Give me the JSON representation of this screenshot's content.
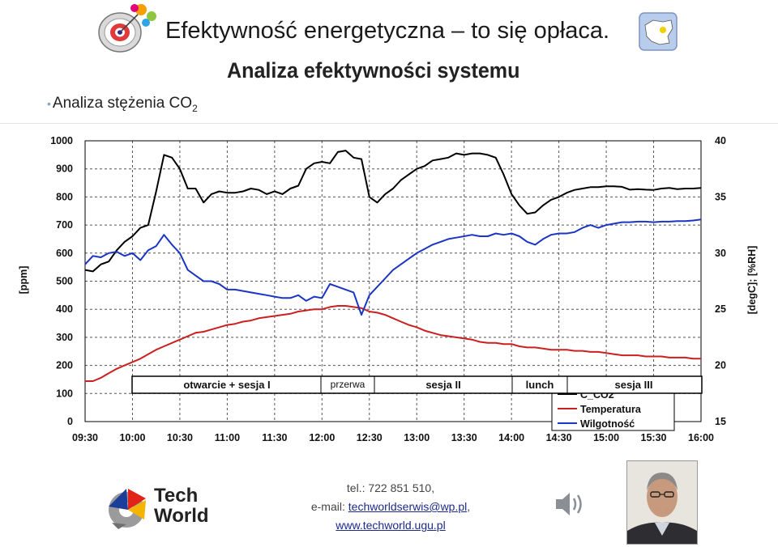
{
  "header": {
    "title": "Efektywność energetyczna – to się opłaca.",
    "subtitle": "Analiza efektywności systemu",
    "bullet_text": "Analiza stężenia CO",
    "bullet_sub": "2"
  },
  "chart_data": {
    "type": "line",
    "x_ticks": [
      "09:30",
      "10:00",
      "10:30",
      "11:00",
      "11:30",
      "12:00",
      "12:30",
      "13:00",
      "13:30",
      "14:00",
      "14:30",
      "15:00",
      "15:30",
      "16:00"
    ],
    "x_range": [
      "09:30",
      "16:00"
    ],
    "left_axis": {
      "label": "[ppm]",
      "ticks": [
        0,
        100,
        200,
        300,
        400,
        500,
        600,
        700,
        800,
        900,
        1000
      ],
      "range": [
        0,
        1000
      ]
    },
    "right_axis": {
      "label": "[degC]; [%RH]",
      "ticks": [
        15,
        20,
        25,
        30,
        35,
        40
      ],
      "range": [
        15,
        40
      ]
    },
    "legend": {
      "position": "right-middle",
      "entries": [
        "C_CO2",
        "Temperatura",
        "Wilgotność"
      ]
    },
    "series": [
      {
        "name": "C_CO2",
        "axis": "left",
        "color": "#000000",
        "x": [
          0,
          5,
          10,
          15,
          20,
          25,
          30,
          35,
          40,
          45,
          50,
          55,
          60,
          65,
          70,
          75,
          80,
          85,
          90,
          95,
          100,
          105,
          110,
          115,
          120,
          125,
          130,
          135,
          140,
          145,
          150,
          155,
          160,
          165,
          170,
          175,
          180,
          185,
          190,
          195,
          200,
          205,
          210,
          215,
          220,
          225,
          230,
          235,
          240,
          245,
          250,
          255,
          260,
          265,
          270,
          275,
          280,
          285,
          290,
          295,
          300,
          305,
          310,
          315,
          320,
          325,
          330,
          335,
          340,
          345,
          350,
          355,
          360,
          365,
          370,
          375,
          380,
          385,
          390
        ],
        "values": [
          540,
          535,
          560,
          570,
          610,
          640,
          660,
          690,
          700,
          820,
          950,
          940,
          900,
          830,
          830,
          780,
          810,
          820,
          815,
          815,
          820,
          830,
          825,
          810,
          820,
          810,
          830,
          840,
          900,
          920,
          925,
          920,
          960,
          965,
          940,
          935,
          800,
          780,
          810,
          830,
          860,
          880,
          900,
          910,
          930,
          935,
          940,
          955,
          950,
          955,
          955,
          950,
          940,
          880,
          810,
          770,
          740,
          745,
          770,
          790,
          800,
          815,
          825,
          830,
          835,
          835,
          838,
          838,
          836,
          826,
          828,
          826,
          825,
          830,
          832,
          828,
          830,
          830,
          832
        ]
      },
      {
        "name": "Temperatura",
        "axis": "right",
        "color": "#cc1f1f",
        "x": [
          0,
          5,
          10,
          15,
          20,
          25,
          30,
          35,
          40,
          45,
          50,
          55,
          60,
          65,
          70,
          75,
          80,
          85,
          90,
          95,
          100,
          105,
          110,
          115,
          120,
          125,
          130,
          135,
          140,
          145,
          150,
          155,
          160,
          165,
          170,
          175,
          180,
          185,
          190,
          195,
          200,
          205,
          210,
          215,
          220,
          225,
          230,
          235,
          240,
          245,
          250,
          255,
          260,
          265,
          270,
          275,
          280,
          285,
          290,
          295,
          300,
          305,
          310,
          315,
          320,
          325,
          330,
          335,
          340,
          345,
          350,
          355,
          360,
          365,
          370,
          375,
          380,
          385,
          390
        ],
        "values": [
          18.6,
          18.6,
          18.9,
          19.3,
          19.7,
          20.0,
          20.3,
          20.6,
          21.0,
          21.4,
          21.7,
          22.0,
          22.3,
          22.6,
          22.9,
          23.0,
          23.2,
          23.4,
          23.6,
          23.7,
          23.9,
          24.0,
          24.2,
          24.3,
          24.4,
          24.5,
          24.6,
          24.8,
          24.9,
          25.0,
          25.0,
          25.2,
          25.3,
          25.3,
          25.2,
          25.1,
          24.8,
          24.7,
          24.5,
          24.2,
          23.9,
          23.6,
          23.4,
          23.1,
          22.9,
          22.7,
          22.6,
          22.5,
          22.4,
          22.3,
          22.1,
          22.0,
          22.0,
          21.9,
          21.9,
          21.7,
          21.6,
          21.6,
          21.5,
          21.4,
          21.4,
          21.4,
          21.3,
          21.3,
          21.2,
          21.2,
          21.1,
          21.0,
          20.9,
          20.9,
          20.9,
          20.8,
          20.8,
          20.8,
          20.7,
          20.7,
          20.7,
          20.6,
          20.6
        ]
      },
      {
        "name": "Wilgotność",
        "axis": "left",
        "color": "#1a35c4",
        "x": [
          0,
          5,
          10,
          15,
          20,
          25,
          30,
          35,
          40,
          45,
          50,
          55,
          60,
          65,
          70,
          75,
          80,
          85,
          90,
          95,
          100,
          105,
          110,
          115,
          120,
          125,
          130,
          135,
          140,
          145,
          150,
          155,
          160,
          165,
          170,
          175,
          180,
          185,
          190,
          195,
          200,
          205,
          210,
          215,
          220,
          225,
          230,
          235,
          240,
          245,
          250,
          255,
          260,
          265,
          270,
          275,
          280,
          285,
          290,
          295,
          300,
          305,
          310,
          315,
          320,
          325,
          330,
          335,
          340,
          345,
          350,
          355,
          360,
          365,
          370,
          375,
          380,
          385,
          390
        ],
        "values": [
          560,
          590,
          585,
          600,
          605,
          590,
          600,
          575,
          610,
          625,
          665,
          630,
          600,
          540,
          520,
          500,
          500,
          490,
          470,
          470,
          465,
          460,
          455,
          450,
          445,
          440,
          440,
          450,
          430,
          445,
          440,
          490,
          480,
          470,
          460,
          380,
          450,
          480,
          510,
          540,
          560,
          580,
          600,
          615,
          630,
          640,
          650,
          655,
          660,
          665,
          660,
          660,
          670,
          665,
          670,
          660,
          640,
          630,
          650,
          665,
          670,
          670,
          675,
          690,
          700,
          690,
          700,
          705,
          710,
          710,
          712,
          712,
          710,
          712,
          712,
          714,
          714,
          716,
          720
        ]
      }
    ],
    "sessions": [
      "otwarcie + sesja I",
      "przerwa",
      "sesja II",
      "lunch",
      "sesja III"
    ]
  },
  "footer": {
    "logo_line1": "Tech",
    "logo_line2": "World",
    "phone": "tel.: 722 851 510,",
    "email_prefix": "e-mail: ",
    "email": "techworldserwis@wp.pl",
    "email_suffix": ",",
    "website": "www.techworld.ugu.pl"
  }
}
